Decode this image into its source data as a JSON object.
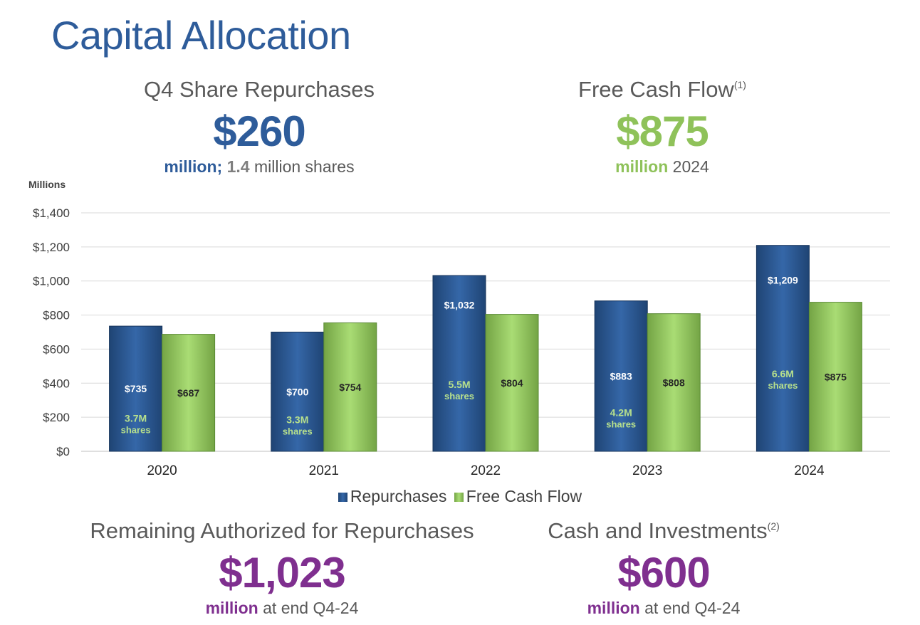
{
  "title": "Capital Allocation",
  "kpis": {
    "repurchases": {
      "label": "Q4 Share Repurchases",
      "value": "$260",
      "sub_unit": "million;",
      "sub_shares": "1.4",
      "sub_rest": "million shares"
    },
    "fcf": {
      "label": "Free Cash Flow",
      "footnote": "(1)",
      "value": "$875",
      "sub_unit": "million",
      "sub_rest": "2024"
    },
    "remaining": {
      "label": "Remaining Authorized for Repurchases",
      "value": "$1,023",
      "sub_unit": "million",
      "sub_rest": "at end Q4-24"
    },
    "cash": {
      "label": "Cash and Investments",
      "footnote": "(2)",
      "value": "$600",
      "sub_unit": "million",
      "sub_rest": "at end Q4-24"
    }
  },
  "colors": {
    "title": "#2e5c9a",
    "repurchases": "#2e5c9a",
    "fcf": "#8fc25a",
    "remaining": "#7f2f8f"
  },
  "chart_data": {
    "type": "bar",
    "ylabel": "Millions",
    "ylim": [
      0,
      1400
    ],
    "yticks": [
      0,
      200,
      400,
      600,
      800,
      1000,
      1200,
      1400
    ],
    "ytick_labels": [
      "$0",
      "$200",
      "$400",
      "$600",
      "$800",
      "$1,000",
      "$1,200",
      "$1,400"
    ],
    "grid": true,
    "legend": "bottom",
    "categories": [
      "2020",
      "2021",
      "2022",
      "2023",
      "2024"
    ],
    "series": [
      {
        "name": "Repurchases",
        "values": [
          735,
          700,
          1032,
          883,
          1209
        ],
        "labels": [
          "$735",
          "$700",
          "$1,032",
          "$883",
          "$1,209"
        ],
        "shares": [
          "3.7M",
          "3.3M",
          "5.5M",
          "4.2M",
          "6.6M"
        ],
        "shares_word": "shares"
      },
      {
        "name": "Free Cash Flow",
        "values": [
          687,
          754,
          804,
          808,
          875
        ],
        "labels": [
          "$687",
          "$754",
          "$804",
          "$808",
          "$875"
        ]
      }
    ]
  }
}
